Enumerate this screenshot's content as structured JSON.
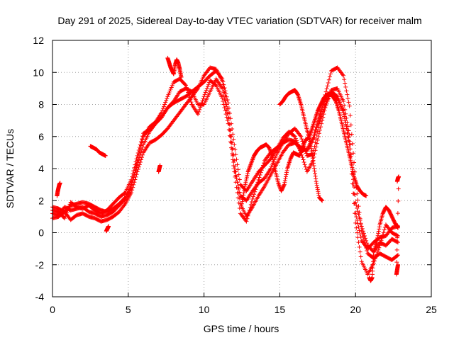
{
  "chart_data": {
    "type": "scatter",
    "title": "Day 291 of 2025, Sidereal Day-to-day VTEC variation (SDTVAR) for receiver malm",
    "xlabel": "GPS time / hours",
    "ylabel": "SDTVAR / TECUs",
    "xlim": [
      0,
      25
    ],
    "ylim": [
      -4,
      12
    ],
    "xticks": [
      0,
      5,
      10,
      15,
      20,
      25
    ],
    "yticks": [
      -4,
      -2,
      0,
      2,
      4,
      6,
      8,
      10,
      12
    ],
    "xtick_labels": [
      "0",
      "5",
      "10",
      "15",
      "20",
      "25"
    ],
    "ytick_labels": [
      "-4",
      "-2",
      "0",
      "2",
      "4",
      "6",
      "8",
      "10",
      "12"
    ],
    "grid": true,
    "marker": "+",
    "series": [
      {
        "name": "track-a",
        "color": "#ff0000",
        "x": [
          0.0,
          0.4,
          0.8,
          1.2,
          1.6,
          2.0,
          2.4,
          2.8,
          3.2,
          3.6,
          4.0,
          4.4,
          4.8,
          5.2,
          5.6,
          6.0,
          6.4,
          6.8,
          7.2,
          7.6,
          8.0,
          8.4,
          8.8,
          9.2,
          9.6,
          10.0,
          10.4,
          10.8,
          11.2,
          11.6,
          12.0,
          12.4,
          12.8,
          13.2,
          13.6,
          14.0,
          14.4,
          14.8,
          15.2,
          15.6,
          16.0,
          16.4,
          16.8,
          17.2,
          17.6,
          18.0,
          18.4,
          18.8,
          19.2,
          19.6,
          20.0,
          20.4,
          20.8,
          21.2,
          21.6,
          22.0,
          22.4,
          22.8
        ],
        "y": [
          1.6,
          1.5,
          1.3,
          1.7,
          1.8,
          1.9,
          1.8,
          1.6,
          1.4,
          1.3,
          1.5,
          1.8,
          2.2,
          3.0,
          4.2,
          5.5,
          6.3,
          6.8,
          7.2,
          7.8,
          8.1,
          8.3,
          8.5,
          8.8,
          9.1,
          9.4,
          9.8,
          10.1,
          9.6,
          8.1,
          5.5,
          3.0,
          2.6,
          3.2,
          3.8,
          4.2,
          4.6,
          5.2,
          5.9,
          6.3,
          6.0,
          5.0,
          3.8,
          4.5,
          6.2,
          7.8,
          8.9,
          9.0,
          8.2,
          6.1,
          1.2,
          -0.5,
          -1.0,
          -0.6,
          -0.3,
          -0.2,
          0.3,
          0.4
        ]
      },
      {
        "name": "track-b",
        "color": "#ff0000",
        "x": [
          0.0,
          0.4,
          0.8,
          1.2,
          1.6,
          2.0,
          2.4,
          2.8,
          3.2,
          3.6,
          4.0,
          4.4,
          4.8,
          5.2,
          5.6,
          6.0,
          6.4,
          6.8,
          7.2,
          7.6,
          8.0,
          8.4,
          8.8,
          9.2,
          9.6,
          10.0,
          10.4,
          10.8,
          11.2,
          11.6,
          12.0,
          12.4,
          12.8,
          13.2,
          13.6,
          14.0,
          14.4,
          14.8,
          15.2,
          15.6,
          16.0,
          16.4,
          16.8,
          17.2,
          17.6,
          18.0,
          18.4,
          18.8,
          19.2,
          19.6,
          20.0,
          20.4,
          20.8,
          21.2,
          21.6,
          22.0,
          22.4,
          22.8
        ],
        "y": [
          0.9,
          1.0,
          1.3,
          0.8,
          1.1,
          1.2,
          1.0,
          0.9,
          0.7,
          0.8,
          1.0,
          1.3,
          1.8,
          2.5,
          3.8,
          5.0,
          5.6,
          5.8,
          6.1,
          6.5,
          7.0,
          7.5,
          8.0,
          8.5,
          9.0,
          9.8,
          10.3,
          10.2,
          9.5,
          7.5,
          4.5,
          1.8,
          1.0,
          1.6,
          2.3,
          2.9,
          3.6,
          4.3,
          5.0,
          5.5,
          5.6,
          5.3,
          5.1,
          5.8,
          7.0,
          8.6,
          10.1,
          10.3,
          9.8,
          7.9,
          3.2,
          0.1,
          -1.3,
          -1.6,
          -1.3,
          -1.5,
          -1.7,
          -1.4
        ]
      },
      {
        "name": "track-c",
        "color": "#ff0000",
        "x": [
          0.0,
          0.4,
          0.8,
          1.2,
          1.6,
          2.0,
          2.4,
          2.8,
          3.2,
          3.6,
          4.0,
          4.4,
          4.8,
          5.2,
          5.6,
          6.0,
          6.4,
          6.8,
          7.2,
          7.6,
          8.0,
          8.4,
          8.8,
          9.2,
          9.6,
          10.0,
          10.4,
          10.8,
          11.2,
          11.6,
          12.0,
          12.4,
          12.8,
          13.2,
          13.6,
          14.0,
          14.4,
          14.8,
          15.2,
          15.6,
          16.0,
          16.4,
          16.8,
          17.2,
          17.6,
          18.0,
          18.4,
          18.8,
          19.2,
          19.6,
          20.0,
          20.4,
          20.8,
          21.2,
          21.6,
          22.0,
          22.4,
          22.8
        ],
        "y": [
          1.2,
          1.1,
          1.6,
          1.4,
          1.5,
          1.6,
          1.3,
          1.2,
          1.0,
          1.1,
          1.3,
          1.7,
          2.1,
          2.8,
          4.5,
          6.0,
          6.6,
          6.9,
          7.5,
          8.5,
          9.4,
          9.6,
          9.2,
          8.0,
          7.4,
          8.5,
          9.5,
          9.2,
          8.4,
          6.8,
          3.8,
          1.2,
          0.7,
          2.1,
          3.3,
          4.5,
          5.0,
          5.3,
          5.6,
          6.2,
          6.5,
          6.0,
          4.8,
          4.9,
          6.8,
          8.0,
          8.8,
          8.5,
          7.5,
          5.5,
          0.6,
          -1.8,
          -2.6,
          -1.9,
          -0.8,
          0.5,
          0.0,
          -0.2
        ]
      },
      {
        "name": "track-d",
        "color": "#ff0000",
        "x": [
          0.0,
          0.4,
          0.8,
          1.2,
          1.6,
          2.0,
          2.4,
          2.8,
          3.2,
          3.6,
          4.0,
          4.4,
          4.8,
          5.2,
          5.6,
          6.0,
          6.4,
          6.8,
          7.2,
          7.6,
          8.0,
          8.4,
          8.8,
          9.2,
          9.6,
          10.0,
          10.4,
          10.8,
          11.2,
          11.6,
          12.0,
          12.4,
          12.8,
          13.2,
          13.6,
          14.0,
          14.4,
          14.8,
          15.2,
          15.6,
          16.0,
          16.4,
          16.8,
          17.2,
          17.6,
          18.0,
          18.4,
          18.8,
          19.2,
          19.6,
          20.0,
          20.4,
          20.8,
          21.2,
          21.6,
          22.0,
          22.4,
          22.8
        ],
        "y": [
          1.4,
          1.3,
          0.9,
          1.9,
          1.6,
          1.5,
          1.7,
          1.4,
          1.2,
          1.4,
          1.8,
          2.2,
          2.5,
          3.3,
          4.8,
          6.2,
          6.4,
          6.9,
          7.2,
          7.8,
          8.2,
          8.8,
          9.0,
          8.8,
          8.0,
          8.0,
          8.8,
          9.6,
          9.0,
          7.2,
          4.0,
          2.3,
          2.0,
          2.6,
          3.1,
          3.4,
          4.0,
          4.9,
          5.6,
          5.8,
          5.7,
          5.1,
          5.2,
          5.9,
          7.3,
          8.3,
          8.8,
          8.4,
          7.6,
          5.7,
          1.9,
          0.4,
          -0.8,
          -1.2,
          -0.6,
          -0.8,
          -0.4,
          -0.6
        ]
      },
      {
        "name": "track-e",
        "color": "#ff0000",
        "x": [
          12.5,
          12.7,
          12.9,
          13.1,
          13.3,
          13.5,
          13.7,
          13.9,
          14.1,
          14.3,
          14.5,
          14.7,
          14.9,
          15.1,
          15.3,
          15.5,
          15.7,
          15.9,
          16.1,
          16.3,
          16.5,
          16.7,
          16.9,
          17.1,
          17.3,
          17.5,
          17.7,
          17.9,
          18.1,
          18.3,
          18.5,
          18.7,
          18.9,
          19.1,
          19.3,
          19.5,
          19.7,
          19.9,
          20.1,
          20.3,
          20.5,
          20.7
        ],
        "y": [
          1.8,
          2.9,
          3.8,
          4.3,
          4.8,
          5.1,
          5.3,
          5.4,
          5.5,
          5.3,
          4.8,
          3.9,
          3.1,
          2.6,
          3.0,
          4.0,
          4.6,
          5.0,
          4.9,
          4.8,
          5.3,
          5.8,
          5.9,
          6.4,
          7.0,
          7.6,
          8.0,
          8.4,
          8.6,
          8.7,
          8.5,
          8.2,
          7.6,
          6.8,
          6.0,
          5.2,
          4.4,
          3.5,
          2.9,
          2.6,
          2.4,
          2.3
        ]
      },
      {
        "name": "track-f",
        "color": "#ff0000",
        "x": [
          15.0,
          15.2,
          15.4,
          15.6,
          15.8,
          16.0,
          16.2,
          16.4,
          16.6,
          16.8,
          17.0,
          17.2,
          17.4,
          17.6,
          17.8
        ],
        "y": [
          8.0,
          8.2,
          8.5,
          8.7,
          8.8,
          8.9,
          8.6,
          8.0,
          7.2,
          6.4,
          5.7,
          4.5,
          3.2,
          2.2,
          2.0
        ]
      },
      {
        "name": "track-g",
        "color": "#ff0000",
        "x": [
          2.5,
          2.7,
          2.9,
          3.1,
          3.3,
          3.5
        ],
        "y": [
          5.4,
          5.3,
          5.2,
          5.0,
          4.9,
          4.8
        ]
      },
      {
        "name": "track-h",
        "color": "#ff0000",
        "x": [
          7.6,
          7.7,
          7.8,
          7.9,
          8.0,
          8.1,
          8.2,
          8.3,
          8.4,
          8.5
        ],
        "y": [
          10.9,
          10.6,
          10.3,
          10.1,
          9.9,
          10.5,
          10.8,
          10.6,
          10.2,
          9.7
        ]
      },
      {
        "name": "track-i",
        "color": "#ff0000",
        "x": [
          20.9,
          21.0,
          21.1,
          21.2,
          21.4,
          21.6,
          21.8,
          22.0,
          22.2,
          22.4,
          22.6,
          22.8
        ],
        "y": [
          -2.8,
          -3.0,
          -2.8,
          -1.2,
          -0.6,
          0.5,
          1.2,
          1.6,
          1.4,
          1.0,
          0.6,
          0.3
        ]
      },
      {
        "name": "track-j",
        "color": "#ff0000",
        "x": [
          0.3,
          0.35,
          0.4,
          0.45,
          0.5,
          3.55,
          3.6,
          3.65,
          3.7,
          7.0,
          7.05,
          7.1,
          22.75,
          22.8,
          22.85,
          22.7,
          22.75,
          22.8
        ],
        "y": [
          2.3,
          2.6,
          2.8,
          3.0,
          3.1,
          0.1,
          0.2,
          0.3,
          0.4,
          3.8,
          4.0,
          4.2,
          3.2,
          3.4,
          3.5,
          -2.6,
          -2.3,
          -2.0
        ]
      }
    ]
  }
}
